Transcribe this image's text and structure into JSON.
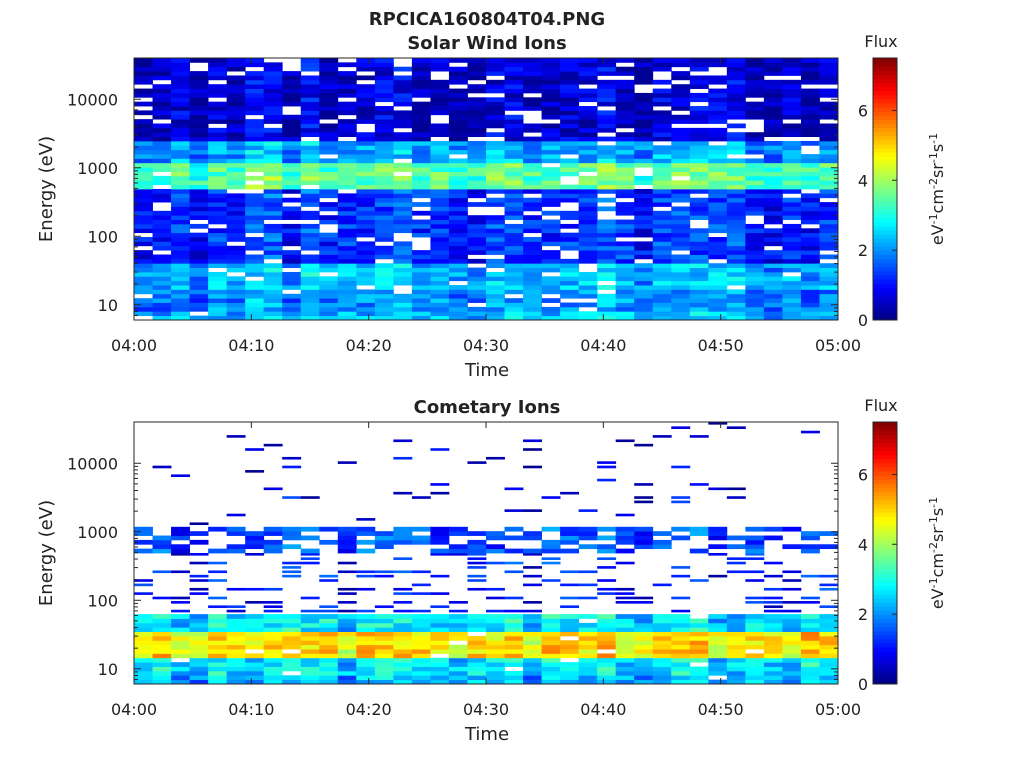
{
  "figure": {
    "title": "RPCICA160804T04.PNG"
  },
  "chart_data": [
    {
      "type": "heatmap",
      "title": "Solar Wind Ions",
      "xlabel": "Time",
      "ylabel": "Energy (eV)",
      "x_ticks": [
        "04:00",
        "04:10",
        "04:20",
        "04:30",
        "04:40",
        "04:50",
        "05:00"
      ],
      "x_range": [
        "04:00",
        "05:00"
      ],
      "time_bins_per_sweep_minutes": 1.6,
      "y_scale": "log",
      "y_range": [
        6,
        40000
      ],
      "y_ticks": [
        10,
        100,
        1000,
        10000
      ],
      "y_tick_labels": [
        "10",
        "100",
        "1000",
        "10000"
      ],
      "colorbar": {
        "title": "Flux",
        "label": "eV-1cm-2sr-1s-1",
        "range": [
          0,
          7.5
        ],
        "ticks": [
          0,
          2,
          4,
          6
        ],
        "colormap": "jet"
      },
      "energy_band_levels": [
        {
          "energy_range": [
            6,
            8
          ],
          "level": 2.4
        },
        {
          "energy_range": [
            8,
            16
          ],
          "level": 2.0
        },
        {
          "energy_range": [
            16,
            40
          ],
          "level": 2.3
        },
        {
          "energy_range": [
            40,
            500
          ],
          "level": 1.3
        },
        {
          "energy_range": [
            500,
            1200
          ],
          "level": 3.5
        },
        {
          "energy_range": [
            1200,
            2500
          ],
          "level": 2.2
        },
        {
          "energy_range": [
            2500,
            40000
          ],
          "level": 0.6
        }
      ],
      "grid": false
    },
    {
      "type": "heatmap",
      "title": "Cometary Ions",
      "xlabel": "Time",
      "ylabel": "Energy (eV)",
      "x_ticks": [
        "04:00",
        "04:10",
        "04:20",
        "04:30",
        "04:40",
        "04:50",
        "05:00"
      ],
      "x_range": [
        "04:00",
        "05:00"
      ],
      "y_scale": "log",
      "y_range": [
        6,
        40000
      ],
      "y_ticks": [
        10,
        100,
        1000,
        10000
      ],
      "y_tick_labels": [
        "10",
        "100",
        "1000",
        "10000"
      ],
      "colorbar": {
        "title": "Flux",
        "label": "eV-1cm-2sr-1s-1",
        "range": [
          0,
          7.5
        ],
        "ticks": [
          0,
          2,
          4,
          6
        ],
        "colormap": "jet"
      },
      "energy_band_levels": [
        {
          "energy_range": [
            6,
            8
          ],
          "level": 2.2
        },
        {
          "energy_range": [
            8,
            14
          ],
          "level": 2.6
        },
        {
          "energy_range": [
            14,
            35
          ],
          "level": 4.8
        },
        {
          "energy_range": [
            35,
            60
          ],
          "level": 2.6
        },
        {
          "energy_range": [
            60,
            500
          ],
          "level": 1.0
        },
        {
          "energy_range": [
            500,
            1100
          ],
          "level": 1.4
        },
        {
          "energy_range": [
            1100,
            40000
          ],
          "level": 0.6
        }
      ],
      "grid": false
    }
  ]
}
